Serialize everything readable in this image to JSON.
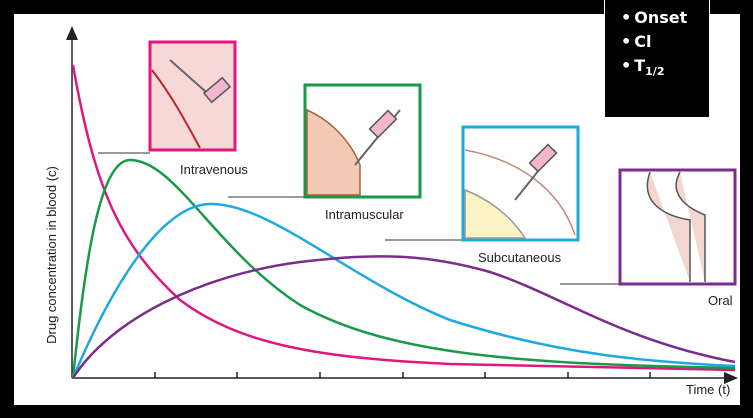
{
  "y_axis_label": "Drug concentration in blood (c)",
  "x_axis_label": "Time (t)",
  "routes": [
    "Intravenous",
    "Intramuscular",
    "Subcutaneous",
    "Oral"
  ],
  "notes": [
    {
      "text": "Onset"
    },
    {
      "text": "Cl"
    },
    {
      "text": "T",
      "subscript": "1/2"
    }
  ]
}
